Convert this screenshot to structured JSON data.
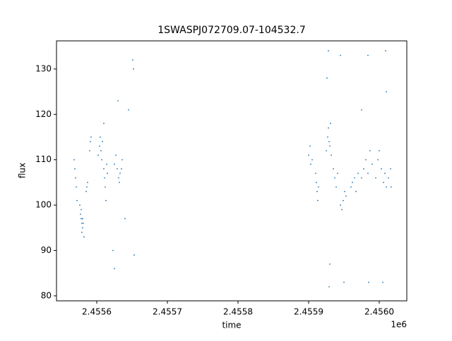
{
  "chart_data": {
    "type": "scatter",
    "title": "1SWASPJ072709.07-104532.7",
    "xlabel": "time",
    "ylabel": "flux",
    "x_offset_label": "1e6",
    "series": [
      {
        "color": "#1f77b4",
        "x": [
          2455568,
          2455569,
          2455570,
          2455571,
          2455572,
          2455576,
          2455577,
          2455578,
          2455579,
          2455580,
          2455581,
          2455579,
          2455580,
          2455582,
          2455578,
          2455585,
          2455586,
          2455587,
          2455590,
          2455591,
          2455592,
          2455602,
          2455604,
          2455605,
          2455606,
          2455607,
          2455608,
          2455610,
          2455611,
          2455612,
          2455613,
          2455614,
          2455615,
          2455625,
          2455627,
          2455629,
          2455631,
          2455633,
          2455635,
          2455636,
          2455632,
          2455645,
          2455651,
          2455652,
          2455610,
          2455625,
          2455623,
          2455630,
          2455640,
          2455653,
          2455900,
          2455902,
          2455903,
          2455905,
          2455910,
          2455911,
          2455912,
          2455913,
          2455914,
          2455925,
          2455927,
          2455928,
          2455929,
          2455930,
          2455931,
          2455932,
          2455935,
          2455937,
          2455939,
          2455941,
          2455945,
          2455947,
          2455949,
          2455951,
          2455953,
          2455960,
          2455962,
          2455965,
          2455967,
          2455970,
          2455975,
          2455978,
          2455981,
          2455984,
          2455987,
          2455990,
          2455995,
          2455998,
          2456000,
          2456003,
          2456006,
          2456008,
          2456010,
          2456013,
          2456016,
          2456017,
          2455928,
          2455929,
          2455926,
          2455945,
          2455984,
          2456009,
          2456010,
          2455950,
          2455985,
          2456005,
          2455975,
          2455930
        ],
        "values": [
          110,
          108,
          106,
          104,
          101,
          100,
          98,
          97,
          96,
          95,
          96,
          94,
          97,
          93,
          99,
          103,
          104,
          105,
          112,
          114,
          115,
          111,
          113,
          115,
          112,
          110,
          114,
          108,
          106,
          104,
          101,
          109,
          107,
          109,
          111,
          108,
          106,
          107,
          108,
          110,
          105,
          121,
          132,
          130,
          118,
          86,
          90,
          123,
          97,
          89,
          111,
          113,
          109,
          110,
          107,
          105,
          103,
          101,
          104,
          112,
          115,
          117,
          114,
          113,
          118,
          111,
          108,
          106,
          104,
          107,
          100,
          99,
          101,
          103,
          102,
          104,
          105,
          106,
          103,
          107,
          106,
          108,
          110,
          107,
          112,
          109,
          106,
          110,
          112,
          108,
          105,
          107,
          104,
          106,
          108,
          104,
          134,
          82,
          128,
          133,
          133,
          134,
          125,
          83,
          83,
          83,
          121,
          87
        ]
      }
    ],
    "xlim": [
      2455543,
      2456039
    ],
    "ylim": [
      78.9,
      136.2
    ],
    "xticks": [
      {
        "value": 2455600,
        "label": "2.4556"
      },
      {
        "value": 2455700,
        "label": "2.4557"
      },
      {
        "value": 2455800,
        "label": "2.4558"
      },
      {
        "value": 2455900,
        "label": "2.4559"
      },
      {
        "value": 2456000,
        "label": "2.4560"
      }
    ],
    "yticks": [
      80,
      90,
      100,
      110,
      120,
      130
    ],
    "grid": false
  }
}
